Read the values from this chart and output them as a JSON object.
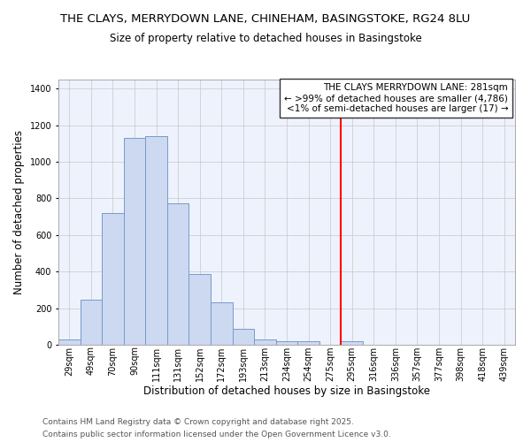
{
  "title": "THE CLAYS, MERRYDOWN LANE, CHINEHAM, BASINGSTOKE, RG24 8LU",
  "subtitle": "Size of property relative to detached houses in Basingstoke",
  "xlabel": "Distribution of detached houses by size in Basingstoke",
  "ylabel": "Number of detached properties",
  "bar_labels": [
    "29sqm",
    "49sqm",
    "70sqm",
    "90sqm",
    "111sqm",
    "131sqm",
    "152sqm",
    "172sqm",
    "193sqm",
    "213sqm",
    "234sqm",
    "254sqm",
    "275sqm",
    "295sqm",
    "316sqm",
    "336sqm",
    "357sqm",
    "377sqm",
    "398sqm",
    "418sqm",
    "439sqm"
  ],
  "bar_heights": [
    30,
    245,
    720,
    1130,
    1140,
    775,
    385,
    230,
    85,
    30,
    18,
    17,
    0,
    17,
    0,
    0,
    0,
    0,
    0,
    0,
    0
  ],
  "bar_color": "#ccd9f0",
  "bar_edge_color": "#7799cc",
  "vline_x": 12.5,
  "vline_color": "red",
  "ylim": [
    0,
    1450
  ],
  "yticks": [
    0,
    200,
    400,
    600,
    800,
    1000,
    1200,
    1400
  ],
  "annotation_title": "THE CLAYS MERRYDOWN LANE: 281sqm",
  "annotation_line1": "← >99% of detached houses are smaller (4,786)",
  "annotation_line2": "<1% of semi-detached houses are larger (17) →",
  "footer1": "Contains HM Land Registry data © Crown copyright and database right 2025.",
  "footer2": "Contains public sector information licensed under the Open Government Licence v3.0.",
  "bg_color": "#eef2fc",
  "grid_color": "#c8c8c8",
  "title_fontsize": 9.5,
  "subtitle_fontsize": 8.5,
  "axis_label_fontsize": 8.5,
  "tick_fontsize": 7.0,
  "annotation_fontsize": 7.5,
  "footer_fontsize": 6.5
}
